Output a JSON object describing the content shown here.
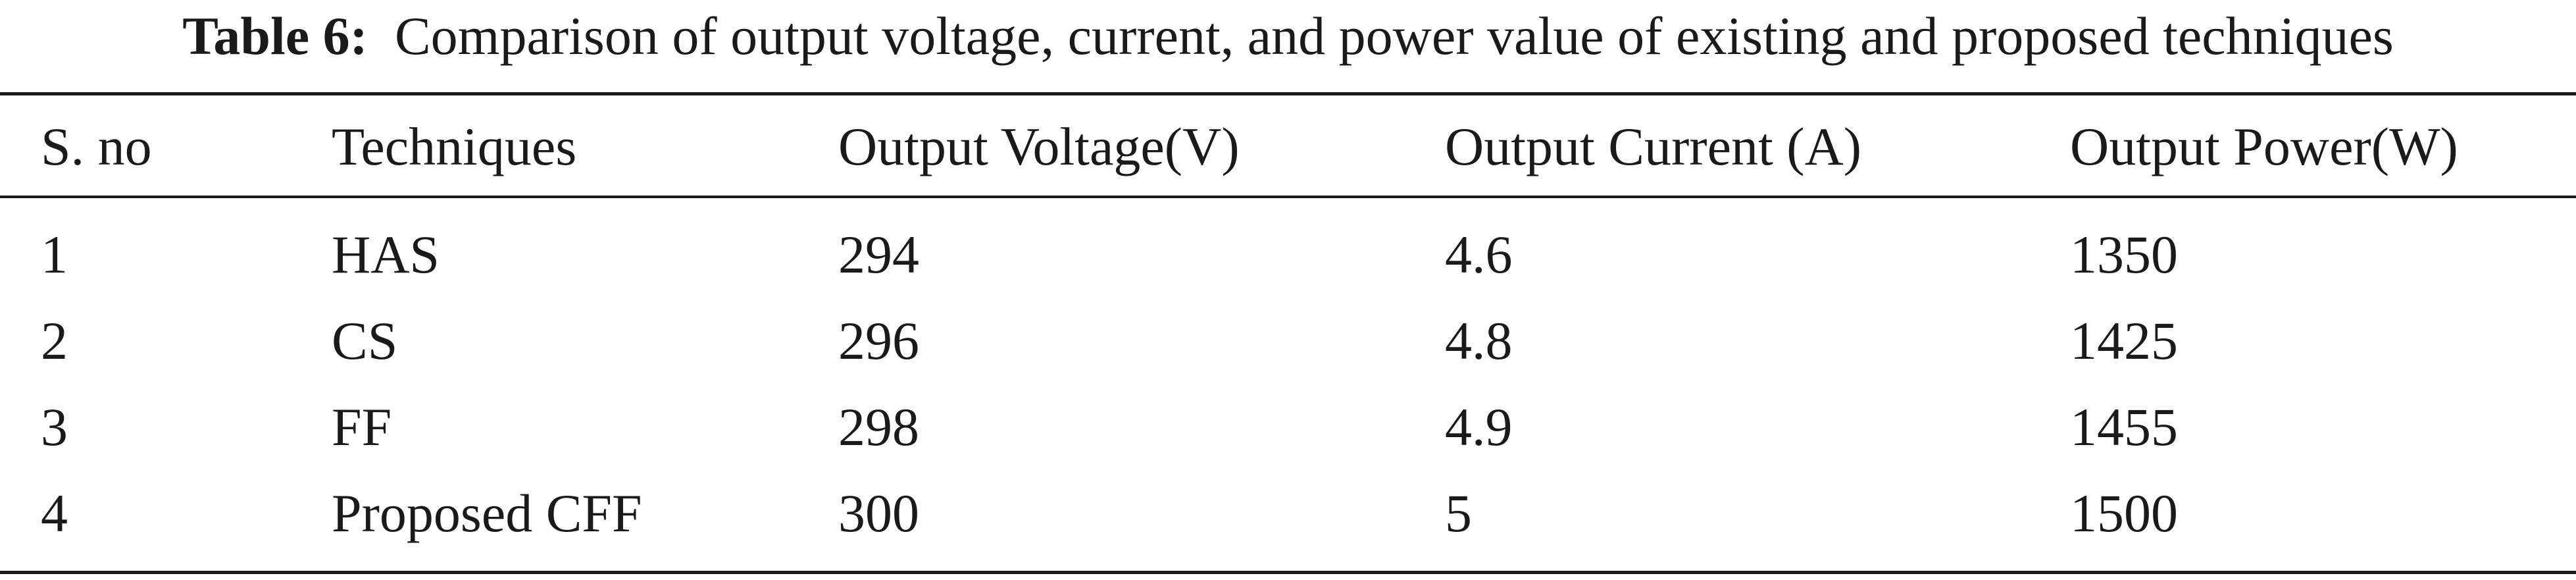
{
  "table": {
    "caption_label": "Table 6:",
    "caption_text": "Comparison of output voltage, current, and power value of existing and proposed techniques",
    "headers": [
      "S. no",
      "Techniques",
      "Output Voltage(V)",
      "Output Current (A)",
      "Output Power(W)"
    ],
    "rows": [
      [
        "1",
        "HAS",
        "294",
        "4.6",
        "1350"
      ],
      [
        "2",
        "CS",
        "296",
        "4.8",
        "1425"
      ],
      [
        "3",
        "FF",
        "298",
        "4.9",
        "1455"
      ],
      [
        "4",
        "Proposed CFF",
        "300",
        "5",
        "1500"
      ]
    ]
  }
}
